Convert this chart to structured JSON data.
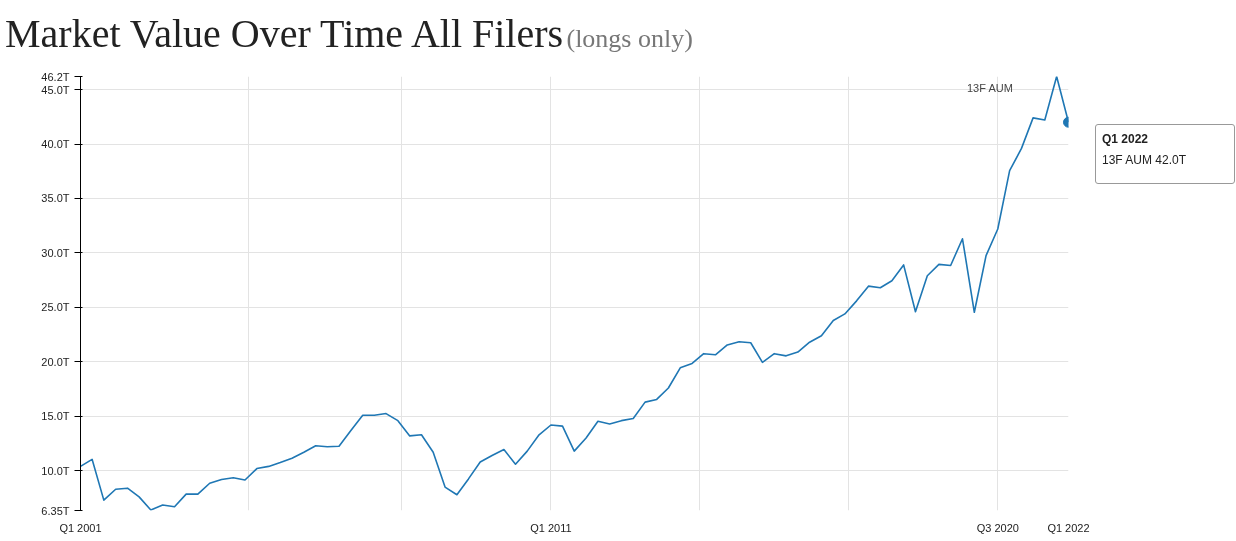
{
  "chart_data": {
    "type": "line",
    "title": "Market Value Over Time All Filers",
    "subtitle": "(longs only)",
    "x": [
      "2001-01",
      "2001-04",
      "2001-07",
      "2001-10",
      "2002-01",
      "2002-04",
      "2002-07",
      "2002-10",
      "2003-01",
      "2003-04",
      "2003-07",
      "2003-10",
      "2004-01",
      "2004-04",
      "2004-07",
      "2004-10",
      "2005-01",
      "2005-04",
      "2005-07",
      "2005-10",
      "2006-01",
      "2006-04",
      "2006-07",
      "2006-10",
      "2007-01",
      "2007-04",
      "2007-07",
      "2007-10",
      "2008-01",
      "2008-04",
      "2008-07",
      "2008-10",
      "2009-01",
      "2009-04",
      "2009-07",
      "2009-10",
      "2010-01",
      "2010-04",
      "2010-07",
      "2010-10",
      "2011-01",
      "2011-04",
      "2011-07",
      "2011-10",
      "2012-01",
      "2012-04",
      "2012-07",
      "2012-10",
      "2013-01",
      "2013-04",
      "2013-07",
      "2013-10",
      "2014-01",
      "2014-04",
      "2014-07",
      "2014-10",
      "2015-01",
      "2015-04",
      "2015-07",
      "2015-10",
      "2016-01",
      "2016-04",
      "2016-07",
      "2016-10",
      "2017-01",
      "2017-04",
      "2017-07",
      "2017-10",
      "2018-01",
      "2018-04",
      "2018-07",
      "2018-10",
      "2019-01",
      "2019-04",
      "2019-07",
      "2019-10",
      "2020-01",
      "2020-04",
      "2020-07",
      "2020-10",
      "2021-01",
      "2021-04",
      "2021-07",
      "2021-10",
      "2022-01"
    ],
    "series": [
      {
        "name": "13F AUM",
        "color": "#1f77b4",
        "values": [
          10.4,
          11.05,
          7.3,
          8.3,
          8.4,
          7.6,
          6.4,
          6.85,
          6.7,
          7.85,
          7.85,
          8.85,
          9.2,
          9.35,
          9.15,
          10.2,
          10.4,
          10.75,
          11.15,
          11.7,
          12.3,
          12.2,
          12.25,
          13.7,
          15.1,
          15.1,
          15.25,
          14.6,
          13.2,
          13.3,
          11.7,
          8.5,
          7.8,
          9.25,
          10.8,
          11.4,
          11.95,
          10.6,
          11.8,
          13.3,
          14.2,
          14.1,
          11.8,
          13.0,
          14.55,
          14.3,
          14.6,
          14.8,
          16.3,
          16.55,
          17.6,
          19.45,
          19.85,
          20.75,
          20.65,
          21.55,
          21.85,
          21.75,
          19.95,
          20.75,
          20.55,
          20.9,
          21.8,
          22.4,
          23.8,
          24.4,
          25.6,
          26.95,
          26.8,
          27.45,
          28.9,
          24.6,
          27.9,
          28.95,
          28.85,
          31.3,
          24.55,
          29.75,
          32.2,
          37.55,
          39.6,
          42.4,
          42.2,
          46.2,
          42.0
        ]
      }
    ],
    "xlim": [
      "2001-01",
      "2022-01"
    ],
    "xticks": [
      {
        "value": "2001-01",
        "label": "Q1 2001"
      },
      {
        "value": "2004-08",
        "label": null
      },
      {
        "value": "2007-11",
        "label": null
      },
      {
        "value": "2011-01",
        "label": "Q1 2011"
      },
      {
        "value": "2014-03",
        "label": null
      },
      {
        "value": "2017-05",
        "label": null
      },
      {
        "value": "2020-07",
        "label": "Q3 2020"
      },
      {
        "value": "2022-01",
        "label": "Q1 2022"
      }
    ],
    "ylim": [
      6.35,
      46.2
    ],
    "yticks": [
      {
        "value": 6.35,
        "label": "6.35T"
      },
      {
        "value": 10,
        "label": "10.0T"
      },
      {
        "value": 15,
        "label": "15.0T"
      },
      {
        "value": 20,
        "label": "20.0T"
      },
      {
        "value": 25,
        "label": "25.0T"
      },
      {
        "value": 30,
        "label": "30.0T"
      },
      {
        "value": 35,
        "label": "35.0T"
      },
      {
        "value": 40,
        "label": "40.0T"
      },
      {
        "value": 45,
        "label": "45.0T"
      },
      {
        "value": 46.2,
        "label": "46.2T"
      }
    ],
    "annotations": [
      {
        "text": "Q1 2022",
        "x": "2022-01",
        "y": 42.0
      },
      "13F AUM 42.0T"
    ],
    "grid": true,
    "legend": "top right",
    "line_style": "solid",
    "marker": "none"
  }
}
